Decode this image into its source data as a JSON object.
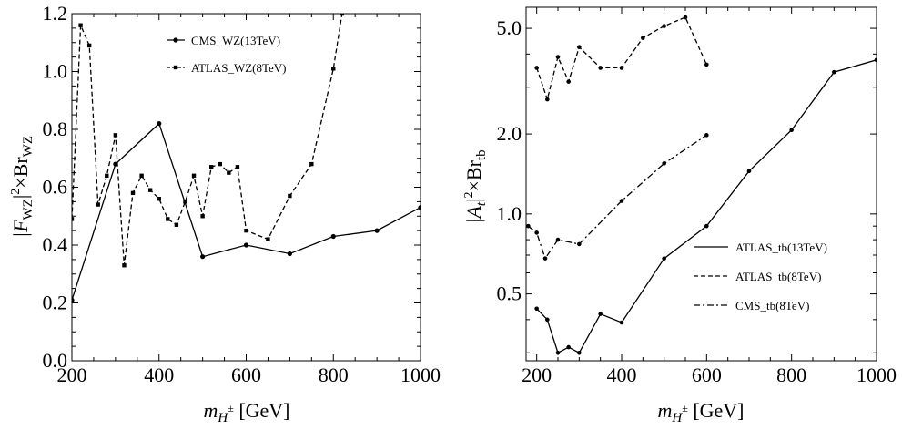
{
  "chart_data": [
    {
      "type": "line",
      "xlabel": {
        "main": "m",
        "sub": "H",
        "sup": "±",
        "unit": " [GeV]"
      },
      "ylabel": {
        "pre": "|F",
        "sub1": "WZ",
        "mid": "|",
        "sup": "2",
        "mid2": "×Br",
        "sub2": "WZ"
      },
      "xlim": [
        200,
        1000
      ],
      "ylim": [
        0.0,
        1.2
      ],
      "xticks": [
        "200",
        "400",
        "600",
        "800",
        "1000"
      ],
      "yticks": [
        "0.0",
        "0.2",
        "0.4",
        "0.6",
        "0.8",
        "1.0",
        "1.2"
      ],
      "legend_position": "top-center",
      "series": [
        {
          "name": "CMS_WZ(13TeV)",
          "style": "solid",
          "marker": "circle",
          "x": [
            200,
            300,
            400,
            500,
            600,
            700,
            800,
            900,
            1000
          ],
          "y": [
            0.21,
            0.68,
            0.82,
            0.36,
            0.4,
            0.37,
            0.43,
            0.45,
            0.53
          ]
        },
        {
          "name": "ATLAS_WZ(8TeV)",
          "style": "dashed",
          "marker": "square",
          "x": [
            200,
            220,
            240,
            260,
            280,
            300,
            320,
            340,
            360,
            380,
            400,
            420,
            440,
            460,
            480,
            500,
            520,
            540,
            560,
            580,
            600,
            650,
            700,
            750,
            800,
            820
          ],
          "y": [
            0.49,
            1.16,
            1.09,
            0.54,
            0.64,
            0.78,
            0.33,
            0.58,
            0.64,
            0.59,
            0.56,
            0.49,
            0.47,
            0.55,
            0.64,
            0.5,
            0.67,
            0.68,
            0.65,
            0.67,
            0.45,
            0.42,
            0.57,
            0.68,
            1.01,
            1.2
          ]
        }
      ]
    },
    {
      "type": "line",
      "yscale": "log",
      "xlabel": {
        "main": "m",
        "sub": "H",
        "sup": "±",
        "unit": " [GeV]"
      },
      "ylabel": {
        "pre": "|A",
        "sub1": "t",
        "mid": "|",
        "sup": "2",
        "mid2": "×Br",
        "sub2": "tb"
      },
      "xlim": [
        175,
        1000
      ],
      "ylim": [
        0.28,
        6.0
      ],
      "xtick_values": [
        200,
        400,
        600,
        800,
        1000
      ],
      "xticks": [
        "200",
        "400",
        "600",
        "800",
        "1000"
      ],
      "ytick_values": [
        0.5,
        1.0,
        2.0,
        5.0
      ],
      "yticks": [
        "0.5",
        "1.0",
        "2.0",
        "5.0"
      ],
      "legend_position": "bottom-right",
      "series": [
        {
          "name": "ATLAS_tb(13TeV)",
          "style": "solid",
          "x": [
            200,
            225,
            250,
            275,
            300,
            350,
            400,
            500,
            600,
            700,
            800,
            900,
            1000
          ],
          "y": [
            0.44,
            0.4,
            0.3,
            0.315,
            0.3,
            0.42,
            0.39,
            0.68,
            0.9,
            1.45,
            2.07,
            3.42,
            3.8
          ]
        },
        {
          "name": "ATLAS_tb(8TeV)",
          "style": "dashed",
          "x": [
            200,
            225,
            250,
            275,
            300,
            350,
            400,
            450,
            500,
            550,
            600
          ],
          "y": [
            3.55,
            2.7,
            3.9,
            3.15,
            4.25,
            3.55,
            3.55,
            4.6,
            5.1,
            5.5,
            3.65
          ]
        },
        {
          "name": "CMS_tb(8TeV)",
          "style": "dashdot",
          "x": [
            180,
            200,
            220,
            250,
            300,
            400,
            500,
            600
          ],
          "y": [
            0.9,
            0.85,
            0.68,
            0.8,
            0.77,
            1.12,
            1.55,
            1.98
          ]
        }
      ]
    }
  ]
}
